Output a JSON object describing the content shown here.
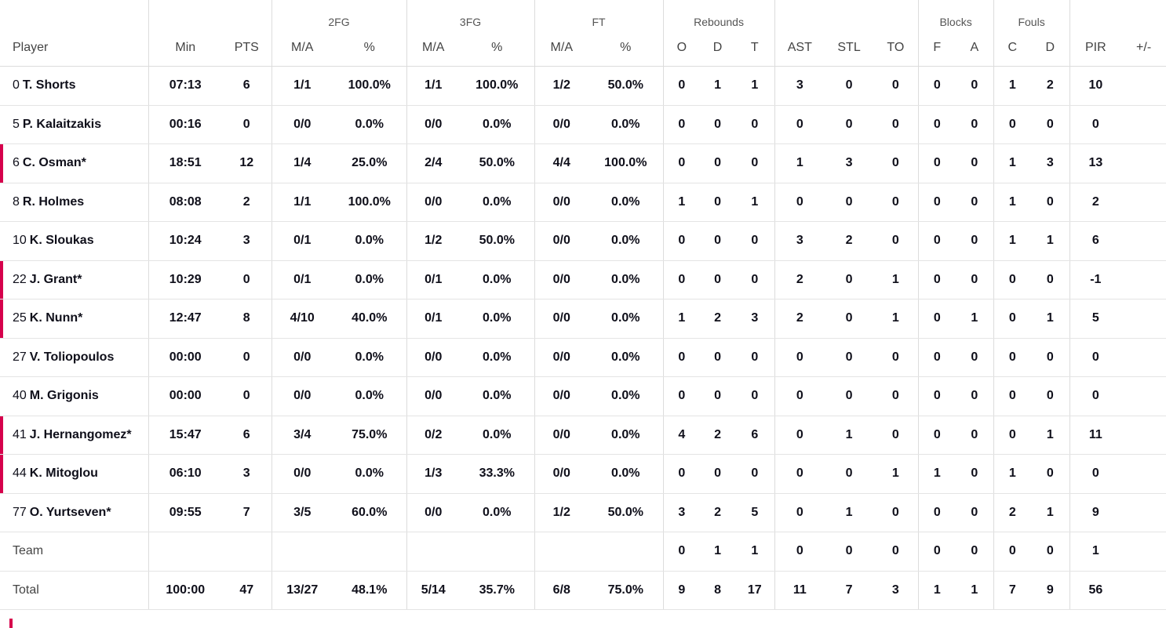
{
  "groups": {
    "fg2": "2FG",
    "fg3": "3FG",
    "ft": "FT",
    "reb": "Rebounds",
    "blk": "Blocks",
    "fouls": "Fouls"
  },
  "headers": [
    "Player",
    "Min",
    "PTS",
    "M/A",
    "%",
    "M/A",
    "%",
    "M/A",
    "%",
    "O",
    "D",
    "T",
    "AST",
    "STL",
    "TO",
    "F",
    "A",
    "C",
    "D",
    "PIR",
    "+/-"
  ],
  "players": [
    {
      "num": "0",
      "name": "T. Shorts",
      "oncourt": false,
      "stats": [
        "07:13",
        "6",
        "1/1",
        "100.0%",
        "1/1",
        "100.0%",
        "1/2",
        "50.0%",
        "0",
        "1",
        "1",
        "3",
        "0",
        "0",
        "0",
        "0",
        "1",
        "2",
        "10",
        ""
      ]
    },
    {
      "num": "5",
      "name": "P. Kalaitzakis",
      "oncourt": false,
      "stats": [
        "00:16",
        "0",
        "0/0",
        "0.0%",
        "0/0",
        "0.0%",
        "0/0",
        "0.0%",
        "0",
        "0",
        "0",
        "0",
        "0",
        "0",
        "0",
        "0",
        "0",
        "0",
        "0",
        ""
      ]
    },
    {
      "num": "6",
      "name": "C. Osman*",
      "oncourt": true,
      "stats": [
        "18:51",
        "12",
        "1/4",
        "25.0%",
        "2/4",
        "50.0%",
        "4/4",
        "100.0%",
        "0",
        "0",
        "0",
        "1",
        "3",
        "0",
        "0",
        "0",
        "1",
        "3",
        "13",
        ""
      ]
    },
    {
      "num": "8",
      "name": "R. Holmes",
      "oncourt": false,
      "stats": [
        "08:08",
        "2",
        "1/1",
        "100.0%",
        "0/0",
        "0.0%",
        "0/0",
        "0.0%",
        "1",
        "0",
        "1",
        "0",
        "0",
        "0",
        "0",
        "0",
        "1",
        "0",
        "2",
        ""
      ]
    },
    {
      "num": "10",
      "name": "K. Sloukas",
      "oncourt": false,
      "stats": [
        "10:24",
        "3",
        "0/1",
        "0.0%",
        "1/2",
        "50.0%",
        "0/0",
        "0.0%",
        "0",
        "0",
        "0",
        "3",
        "2",
        "0",
        "0",
        "0",
        "1",
        "1",
        "6",
        ""
      ]
    },
    {
      "num": "22",
      "name": "J. Grant*",
      "oncourt": true,
      "stats": [
        "10:29",
        "0",
        "0/1",
        "0.0%",
        "0/1",
        "0.0%",
        "0/0",
        "0.0%",
        "0",
        "0",
        "0",
        "2",
        "0",
        "1",
        "0",
        "0",
        "0",
        "0",
        "-1",
        ""
      ]
    },
    {
      "num": "25",
      "name": "K. Nunn*",
      "oncourt": true,
      "stats": [
        "12:47",
        "8",
        "4/10",
        "40.0%",
        "0/1",
        "0.0%",
        "0/0",
        "0.0%",
        "1",
        "2",
        "3",
        "2",
        "0",
        "1",
        "0",
        "1",
        "0",
        "1",
        "5",
        ""
      ]
    },
    {
      "num": "27",
      "name": "V. Toliopoulos",
      "oncourt": false,
      "stats": [
        "00:00",
        "0",
        "0/0",
        "0.0%",
        "0/0",
        "0.0%",
        "0/0",
        "0.0%",
        "0",
        "0",
        "0",
        "0",
        "0",
        "0",
        "0",
        "0",
        "0",
        "0",
        "0",
        ""
      ]
    },
    {
      "num": "40",
      "name": "M. Grigonis",
      "oncourt": false,
      "stats": [
        "00:00",
        "0",
        "0/0",
        "0.0%",
        "0/0",
        "0.0%",
        "0/0",
        "0.0%",
        "0",
        "0",
        "0",
        "0",
        "0",
        "0",
        "0",
        "0",
        "0",
        "0",
        "0",
        ""
      ]
    },
    {
      "num": "41",
      "name": "J. Hernangomez*",
      "oncourt": true,
      "stats": [
        "15:47",
        "6",
        "3/4",
        "75.0%",
        "0/2",
        "0.0%",
        "0/0",
        "0.0%",
        "4",
        "2",
        "6",
        "0",
        "1",
        "0",
        "0",
        "0",
        "0",
        "1",
        "11",
        ""
      ]
    },
    {
      "num": "44",
      "name": "K. Mitoglou",
      "oncourt": true,
      "stats": [
        "06:10",
        "3",
        "0/0",
        "0.0%",
        "1/3",
        "33.3%",
        "0/0",
        "0.0%",
        "0",
        "0",
        "0",
        "0",
        "0",
        "1",
        "1",
        "0",
        "1",
        "0",
        "0",
        ""
      ]
    },
    {
      "num": "77",
      "name": "O. Yurtseven*",
      "oncourt": false,
      "stats": [
        "09:55",
        "7",
        "3/5",
        "60.0%",
        "0/0",
        "0.0%",
        "1/2",
        "50.0%",
        "3",
        "2",
        "5",
        "0",
        "1",
        "0",
        "0",
        "0",
        "2",
        "1",
        "9",
        ""
      ]
    }
  ],
  "team": {
    "label": "Team",
    "stats": [
      "",
      "",
      "",
      "",
      "",
      "",
      "",
      "",
      "0",
      "1",
      "1",
      "0",
      "0",
      "0",
      "0",
      "0",
      "0",
      "0",
      "1",
      ""
    ]
  },
  "total": {
    "label": "Total",
    "stats": [
      "100:00",
      "47",
      "13/27",
      "48.1%",
      "5/14",
      "35.7%",
      "6/8",
      "75.0%",
      "9",
      "8",
      "17",
      "11",
      "7",
      "3",
      "1",
      "1",
      "7",
      "9",
      "56",
      ""
    ]
  }
}
